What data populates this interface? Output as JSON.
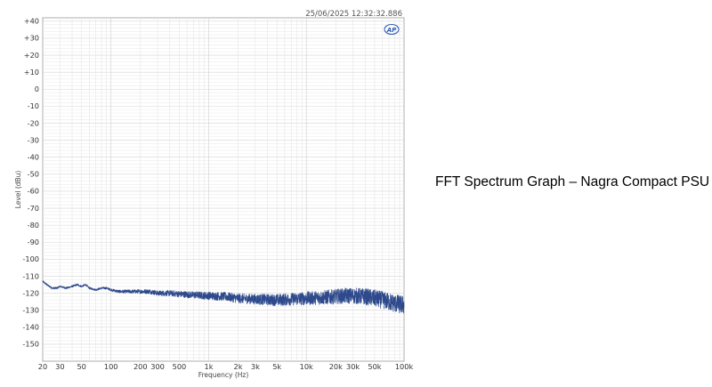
{
  "side_title": "FFT Spectrum Graph – Nagra Compact PSU",
  "chart_data": {
    "type": "line",
    "title": "",
    "timestamp": "25/06/2025 12:32:32.886",
    "logo_text": "AP",
    "xlabel": "Frequency (Hz)",
    "ylabel": "Level (dBu)",
    "x_scale": "log",
    "xlim": [
      20,
      100000
    ],
    "ylim": [
      -160,
      42
    ],
    "grid": true,
    "x_ticks": [
      {
        "value": 20,
        "label": "20"
      },
      {
        "value": 30,
        "label": "30"
      },
      {
        "value": 50,
        "label": "50"
      },
      {
        "value": 100,
        "label": "100"
      },
      {
        "value": 200,
        "label": "200"
      },
      {
        "value": 300,
        "label": "300"
      },
      {
        "value": 500,
        "label": "500"
      },
      {
        "value": 1000,
        "label": "1k"
      },
      {
        "value": 2000,
        "label": "2k"
      },
      {
        "value": 3000,
        "label": "3k"
      },
      {
        "value": 5000,
        "label": "5k"
      },
      {
        "value": 10000,
        "label": "10k"
      },
      {
        "value": 20000,
        "label": "20k"
      },
      {
        "value": 30000,
        "label": "30k"
      },
      {
        "value": 50000,
        "label": "50k"
      },
      {
        "value": 100000,
        "label": "100k"
      }
    ],
    "y_ticks": [
      {
        "value": 40,
        "label": "+40"
      },
      {
        "value": 30,
        "label": "+30"
      },
      {
        "value": 20,
        "label": "+20"
      },
      {
        "value": 10,
        "label": "+10"
      },
      {
        "value": 0,
        "label": "0"
      },
      {
        "value": -10,
        "label": "-10"
      },
      {
        "value": -20,
        "label": "-20"
      },
      {
        "value": -30,
        "label": "-30"
      },
      {
        "value": -40,
        "label": "-40"
      },
      {
        "value": -50,
        "label": "-50"
      },
      {
        "value": -60,
        "label": "-60"
      },
      {
        "value": -70,
        "label": "-70"
      },
      {
        "value": -80,
        "label": "-80"
      },
      {
        "value": -90,
        "label": "-90"
      },
      {
        "value": -100,
        "label": "-100"
      },
      {
        "value": -110,
        "label": "-110"
      },
      {
        "value": -120,
        "label": "-120"
      },
      {
        "value": -130,
        "label": "-130"
      },
      {
        "value": -140,
        "label": "-140"
      },
      {
        "value": -150,
        "label": "-150"
      }
    ],
    "series": [
      {
        "color": "#2e4a8c",
        "x": [
          20,
          22,
          25,
          28,
          30,
          35,
          40,
          45,
          50,
          55,
          60,
          70,
          80,
          90,
          100,
          120,
          150,
          200,
          250,
          300,
          400,
          500,
          700,
          1000,
          1500,
          2000,
          3000,
          5000,
          7000,
          10000,
          15000,
          20000,
          25000,
          30000,
          40000,
          50000,
          60000,
          70000,
          80000,
          90000,
          100000
        ],
        "y": [
          -113,
          -115,
          -117,
          -117,
          -116,
          -117,
          -116,
          -115,
          -116,
          -115,
          -117,
          -118,
          -117,
          -117,
          -118,
          -119,
          -119,
          -119,
          -119,
          -120,
          -120,
          -120.5,
          -121,
          -121.5,
          -122,
          -123,
          -123.5,
          -124,
          -123.5,
          -123,
          -122.5,
          -122,
          -121.5,
          -121.5,
          -122,
          -123,
          -124,
          -125,
          -126,
          -126.5,
          -127
        ]
      }
    ]
  }
}
